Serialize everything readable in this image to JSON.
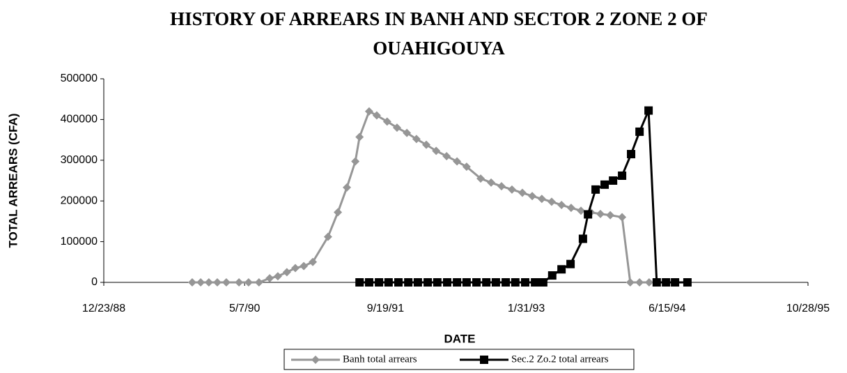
{
  "chart_data": {
    "type": "line",
    "title": [
      "HISTORY OF ARREARS IN BANH AND SECTOR 2 ZONE 2 OF",
      "OUAHIGOUYA"
    ],
    "x_label": "DATE",
    "y_label": "TOTAL ARREARS (CFA)",
    "xlim": [
      32500,
      35000
    ],
    "xticks": [
      {
        "value": 32500,
        "label": "12/23/88"
      },
      {
        "value": 33000,
        "label": "5/7/90"
      },
      {
        "value": 33500,
        "label": "9/19/91"
      },
      {
        "value": 34000,
        "label": "1/31/93"
      },
      {
        "value": 34500,
        "label": "6/15/94"
      },
      {
        "value": 35000,
        "label": "10/28/95"
      }
    ],
    "ylim": [
      0,
      500000
    ],
    "yticks": [
      0,
      100000,
      200000,
      300000,
      400000,
      500000
    ],
    "series": [
      {
        "name": "Banh total arrears",
        "color": "#969696",
        "marker": "diamond",
        "x": [
          32814,
          32844,
          32873,
          32903,
          32935,
          32980,
          33014,
          33051,
          33089,
          33118,
          33150,
          33180,
          33210,
          33242,
          33296,
          33331,
          33363,
          33393,
          33408,
          33442,
          33469,
          33506,
          33541,
          33576,
          33610,
          33645,
          33680,
          33717,
          33754,
          33788,
          33838,
          33875,
          33912,
          33949,
          33986,
          34021,
          34055,
          34090,
          34125,
          34159,
          34194,
          34229,
          34263,
          34298,
          34340,
          34369,
          34402,
          34436
        ],
        "values": [
          0,
          0,
          0,
          0,
          0,
          0,
          0,
          0,
          10000,
          15000,
          25000,
          35000,
          40000,
          50000,
          112000,
          172000,
          233000,
          297000,
          357000,
          420000,
          410000,
          395000,
          380000,
          367000,
          352000,
          338000,
          323000,
          310000,
          297000,
          284000,
          255000,
          245000,
          236000,
          228000,
          220000,
          212000,
          205000,
          198000,
          190000,
          183000,
          176000,
          172000,
          168000,
          165000,
          160000,
          0,
          0,
          0
        ]
      },
      {
        "name": "Sec.2 Zo.2 total arrears",
        "color": "#000000",
        "marker": "square",
        "x": [
          33408,
          33442,
          33477,
          33511,
          33546,
          33581,
          33615,
          33650,
          33684,
          33719,
          33754,
          33788,
          33823,
          33858,
          33892,
          33927,
          33961,
          33996,
          34031,
          34060,
          34092,
          34125,
          34157,
          34201,
          34219,
          34246,
          34278,
          34308,
          34340,
          34372,
          34402,
          34434,
          34463,
          34496,
          34528,
          34572
        ],
        "values": [
          0,
          0,
          0,
          0,
          0,
          0,
          0,
          0,
          0,
          0,
          0,
          0,
          0,
          0,
          0,
          0,
          0,
          0,
          0,
          0,
          17000,
          32000,
          45000,
          107000,
          167000,
          228000,
          240000,
          250000,
          262000,
          315000,
          370000,
          422000,
          0,
          0,
          0,
          0
        ]
      }
    ]
  }
}
